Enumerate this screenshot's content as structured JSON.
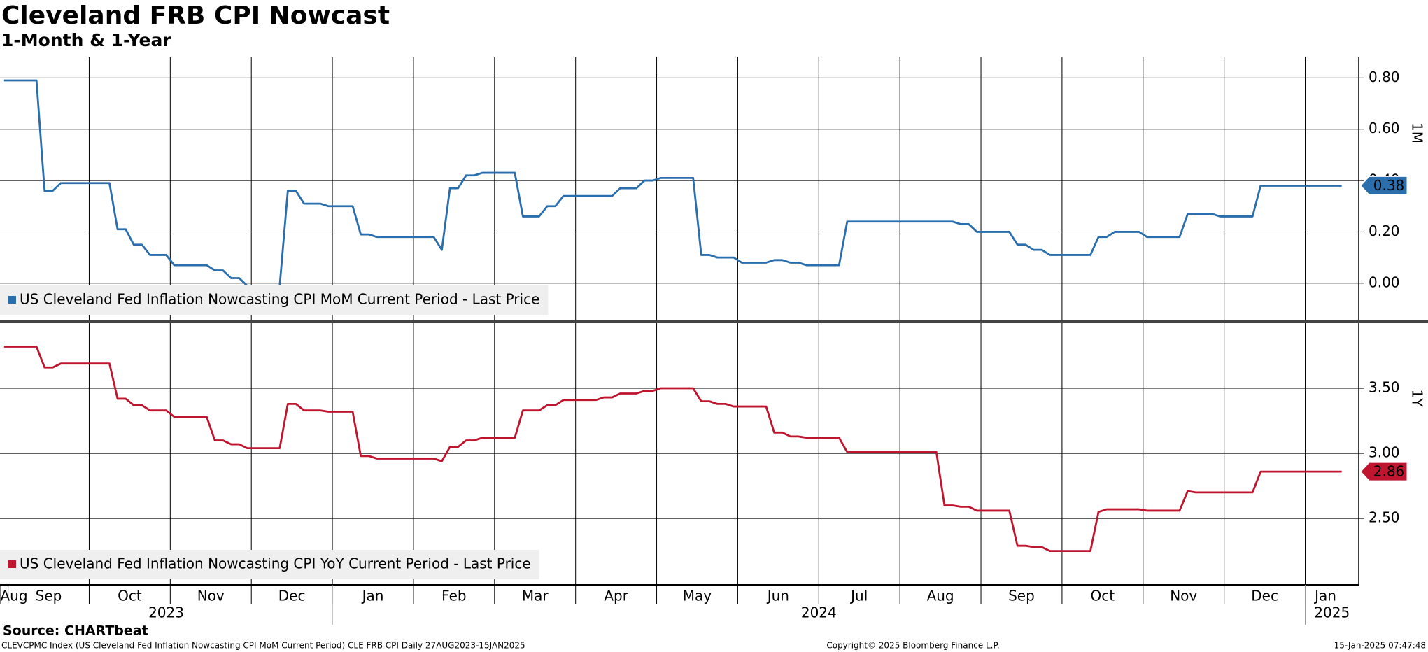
{
  "chart_data": {
    "type": "line",
    "title": "Cleveland FRB CPI Nowcast",
    "subtitle": "1-Month & 1-Year",
    "x_axis": {
      "years": [
        {
          "label": "2023",
          "months": [
            "Aug",
            "Sep",
            "Oct",
            "Nov",
            "Dec"
          ]
        },
        {
          "label": "2024",
          "months": [
            "Jan",
            "Feb",
            "Mar",
            "Apr",
            "May",
            "Jun",
            "Jul",
            "Aug",
            "Sep",
            "Oct",
            "Nov",
            "Dec"
          ]
        },
        {
          "label": "2025",
          "months": [
            "Jan"
          ]
        }
      ]
    },
    "panels": [
      {
        "label": "1M",
        "ylim": [
          -0.145,
          0.88
        ],
        "yticks": [
          {
            "value": 0,
            "label": "0.00"
          },
          {
            "value": 0.2,
            "label": "0.20"
          },
          {
            "value": 0.4,
            "label": "0.40"
          },
          {
            "value": 0.6,
            "label": "0.60"
          },
          {
            "value": 0.8,
            "label": "0.80"
          }
        ],
        "series": [
          {
            "name": "US Cleveland Fed Inflation Nowcasting CPI MoM Current Period - Last Price",
            "color": "#2a6ead",
            "values": [
              [
                0.79
              ],
              [
                0.79,
                0.79,
                0.79,
                0.79,
                0.36,
                0.36,
                0.39,
                0.39,
                0.39,
                0.39
              ],
              [
                0.39,
                0.39,
                0.39,
                0.21,
                0.21,
                0.15,
                0.15,
                0.11,
                0.11,
                0.11
              ],
              [
                0.07,
                0.07,
                0.07,
                0.07,
                0.07,
                0.05,
                0.05,
                0.02,
                0.02,
                -0.01
              ],
              [
                -0.01,
                -0.01,
                -0.01,
                -0.01,
                0.36,
                0.36,
                0.31,
                0.31,
                0.31,
                0.3
              ],
              [
                0.3,
                0.3,
                0.3,
                0.19,
                0.19,
                0.18,
                0.18,
                0.18,
                0.18,
                0.18
              ],
              [
                0.18,
                0.18,
                0.18,
                0.13,
                0.37,
                0.37,
                0.42,
                0.42,
                0.43,
                0.43
              ],
              [
                0.43,
                0.43,
                0.43,
                0.26,
                0.26,
                0.26,
                0.3,
                0.3,
                0.34,
                0.34
              ],
              [
                0.34,
                0.34,
                0.34,
                0.34,
                0.34,
                0.37,
                0.37,
                0.37,
                0.4,
                0.4
              ],
              [
                0.41,
                0.41,
                0.41,
                0.41,
                0.41,
                0.11,
                0.11,
                0.1,
                0.1,
                0.1
              ],
              [
                0.08,
                0.08,
                0.08,
                0.08,
                0.09,
                0.09,
                0.08,
                0.08,
                0.07,
                0.07
              ],
              [
                0.07,
                0.07,
                0.07,
                0.24,
                0.24,
                0.24,
                0.24,
                0.24,
                0.24,
                0.24
              ],
              [
                0.24,
                0.24,
                0.24,
                0.24,
                0.24,
                0.24,
                0.24,
                0.23,
                0.23,
                0.2
              ],
              [
                0.2,
                0.2,
                0.2,
                0.2,
                0.15,
                0.15,
                0.13,
                0.13,
                0.11,
                0.11
              ],
              [
                0.11,
                0.11,
                0.11,
                0.11,
                0.18,
                0.18,
                0.2,
                0.2,
                0.2,
                0.2
              ],
              [
                0.18,
                0.18,
                0.18,
                0.18,
                0.18,
                0.27,
                0.27,
                0.27,
                0.27,
                0.26
              ],
              [
                0.26,
                0.26,
                0.26,
                0.26,
                0.38,
                0.38,
                0.38,
                0.38,
                0.38,
                0.38
              ],
              [
                0.38,
                0.38,
                0.38,
                0.38,
                0.38
              ]
            ]
          }
        ]
      },
      {
        "label": "1Y",
        "ylim": [
          1.99,
          4.0
        ],
        "yticks": [
          {
            "value": 2.5,
            "label": "2.50"
          },
          {
            "value": 3,
            "label": "3.00"
          },
          {
            "value": 3.5,
            "label": "3.50"
          }
        ],
        "series": [
          {
            "name": "US Cleveland Fed Inflation Nowcasting CPI YoY Current Period - Last Price",
            "color": "#c0152f",
            "values": [
              [
                3.82
              ],
              [
                3.82,
                3.82,
                3.82,
                3.82,
                3.66,
                3.66,
                3.69,
                3.69,
                3.69,
                3.69
              ],
              [
                3.69,
                3.69,
                3.69,
                3.42,
                3.42,
                3.37,
                3.37,
                3.33,
                3.33,
                3.33
              ],
              [
                3.28,
                3.28,
                3.28,
                3.28,
                3.28,
                3.1,
                3.1,
                3.07,
                3.07,
                3.04
              ],
              [
                3.04,
                3.04,
                3.04,
                3.04,
                3.38,
                3.38,
                3.33,
                3.33,
                3.33,
                3.32
              ],
              [
                3.32,
                3.32,
                3.32,
                2.98,
                2.98,
                2.96,
                2.96,
                2.96,
                2.96,
                2.96
              ],
              [
                2.96,
                2.96,
                2.96,
                2.94,
                3.05,
                3.05,
                3.1,
                3.1,
                3.12,
                3.12
              ],
              [
                3.12,
                3.12,
                3.12,
                3.33,
                3.33,
                3.33,
                3.37,
                3.37,
                3.41,
                3.41
              ],
              [
                3.41,
                3.41,
                3.41,
                3.43,
                3.43,
                3.46,
                3.46,
                3.46,
                3.48,
                3.48
              ],
              [
                3.5,
                3.5,
                3.5,
                3.5,
                3.5,
                3.4,
                3.4,
                3.38,
                3.38,
                3.36
              ],
              [
                3.36,
                3.36,
                3.36,
                3.36,
                3.16,
                3.16,
                3.13,
                3.13,
                3.12,
                3.12
              ],
              [
                3.12,
                3.12,
                3.12,
                3.01,
                3.01,
                3.01,
                3.01,
                3.01,
                3.01,
                3.01
              ],
              [
                3.01,
                3.01,
                3.01,
                3.01,
                3.01,
                2.6,
                2.6,
                2.59,
                2.59,
                2.56
              ],
              [
                2.56,
                2.56,
                2.56,
                2.56,
                2.29,
                2.29,
                2.28,
                2.28,
                2.25,
                2.25
              ],
              [
                2.25,
                2.25,
                2.25,
                2.25,
                2.55,
                2.57,
                2.57,
                2.57,
                2.57,
                2.57
              ],
              [
                2.56,
                2.56,
                2.56,
                2.56,
                2.56,
                2.71,
                2.7,
                2.7,
                2.7,
                2.7
              ],
              [
                2.7,
                2.7,
                2.7,
                2.7,
                2.86,
                2.86,
                2.86,
                2.86,
                2.86,
                2.86
              ],
              [
                2.86,
                2.86,
                2.86,
                2.86,
                2.86
              ]
            ]
          }
        ]
      }
    ],
    "source": "Source: CHARTbeat",
    "footer_left": "CLEVCPMC Index (US Cleveland Fed Inflation Nowcasting CPI MoM Current Period) CLE FRB CPI  Daily 27AUG2023-15JAN2025",
    "footer_center": "Copyright© 2025 Bloomberg Finance L.P.",
    "footer_right": "15-Jan-2025 07:47:48"
  }
}
